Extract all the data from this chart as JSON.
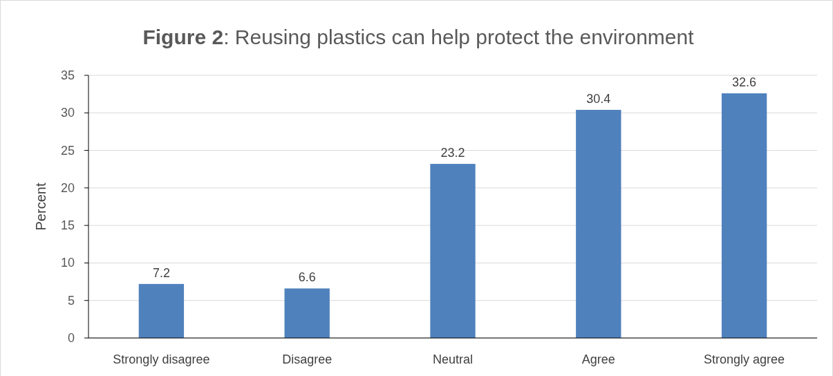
{
  "chart_data": {
    "type": "bar",
    "title": "Figure 2: Reusing plastics can help protect the environment",
    "ylabel": "Percent",
    "categories": [
      "Strongly disagree",
      "Disagree",
      "Neutral",
      "Agree",
      "Strongly agree"
    ],
    "values": [
      7.2,
      6.6,
      23.2,
      30.4,
      32.6
    ],
    "color": "#4f81bd",
    "ylim": [
      0,
      35
    ],
    "yticks": [
      0,
      5,
      10,
      15,
      20,
      25,
      30,
      35
    ],
    "grid": "y",
    "data_labels": true
  }
}
